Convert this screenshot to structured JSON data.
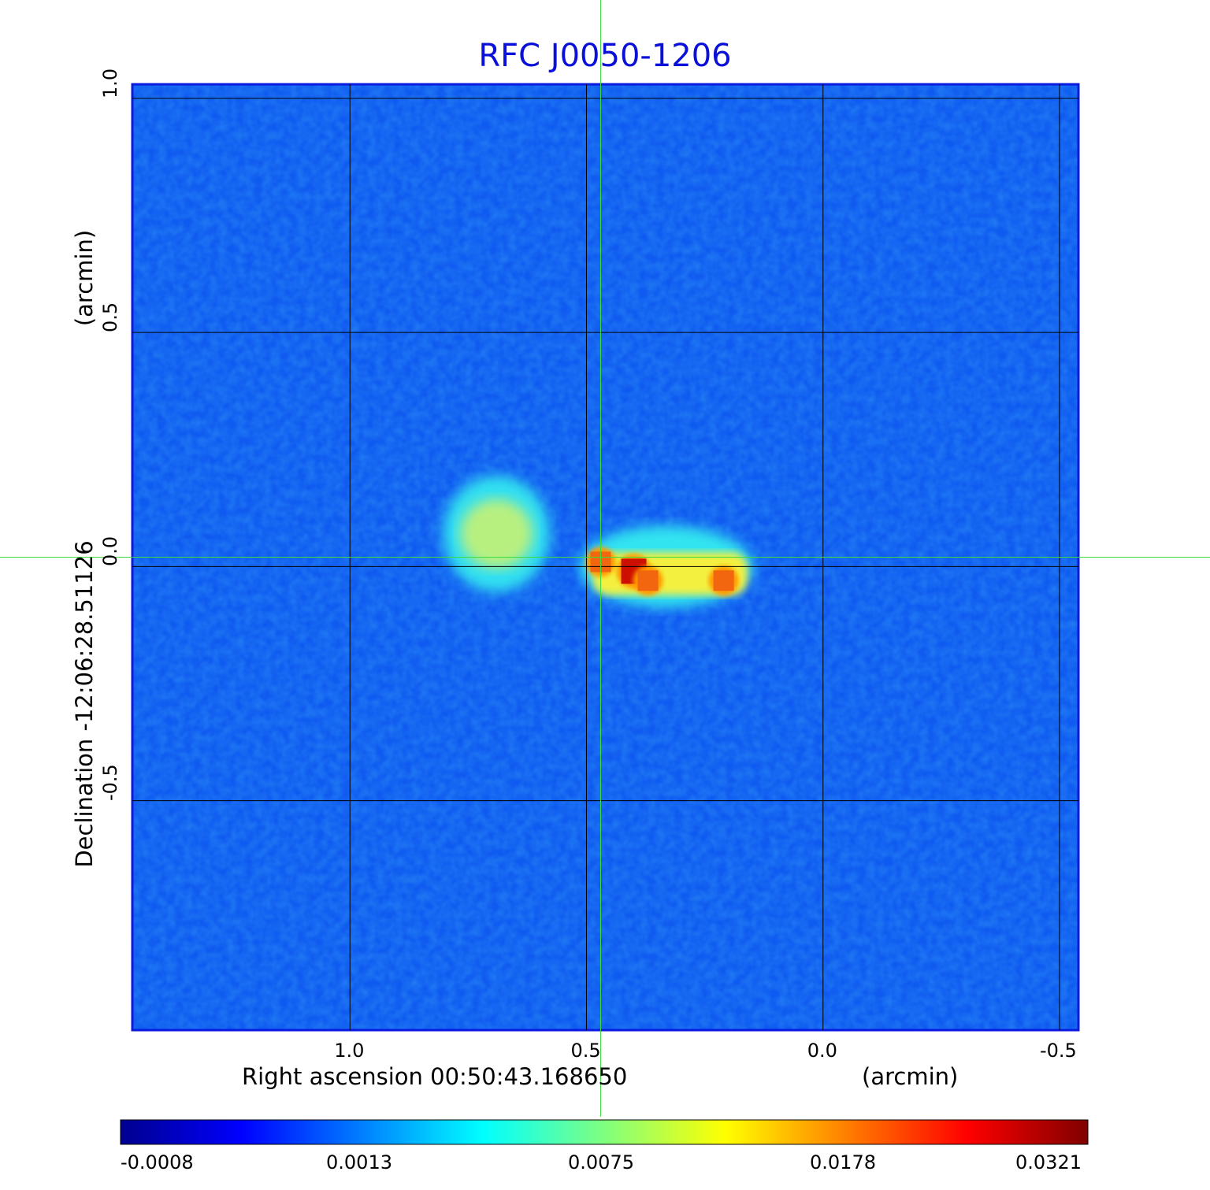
{
  "chart_data": {
    "type": "heatmap",
    "title": "RFC J0050-1206",
    "xlabel": "Right ascension  00:50:43.168650",
    "xlabel_unit": "(arcmin)",
    "ylabel": "Declination  -12:06:28.51126",
    "ylabel_unit": "(arcmin)",
    "x_ticks": [
      "1.0",
      "0.5",
      "0.0",
      "-0.5"
    ],
    "y_ticks": [
      "1.0",
      "0.5",
      "0.0",
      "-0.5"
    ],
    "xlim": [
      1.46,
      -0.54
    ],
    "ylim": [
      -0.99,
      1.03
    ],
    "grid": true,
    "crosshair": {
      "x": 0.47,
      "y": 0.02
    },
    "colorbar": {
      "ticks": [
        "-0.0008",
        "0.0013",
        "0.0075",
        "0.0178",
        "0.0321"
      ],
      "colormap": "jet",
      "colors": [
        "#00008f",
        "#0000ff",
        "#00ffff",
        "#ffff00",
        "#ff0000",
        "#800000"
      ]
    },
    "sources": [
      {
        "name": "diffuse blob",
        "x": 0.69,
        "y": 0.07,
        "peak": 0.0075
      },
      {
        "name": "jet knot 1",
        "x": 0.47,
        "y": 0.01,
        "peak": 0.0178
      },
      {
        "name": "jet knot 2",
        "x": 0.4,
        "y": -0.01,
        "peak": 0.0321
      },
      {
        "name": "jet knot 3",
        "x": 0.37,
        "y": -0.03,
        "peak": 0.0178
      },
      {
        "name": "jet knot 4",
        "x": 0.21,
        "y": -0.03,
        "peak": 0.0178
      }
    ],
    "background_level": -0.0003
  }
}
